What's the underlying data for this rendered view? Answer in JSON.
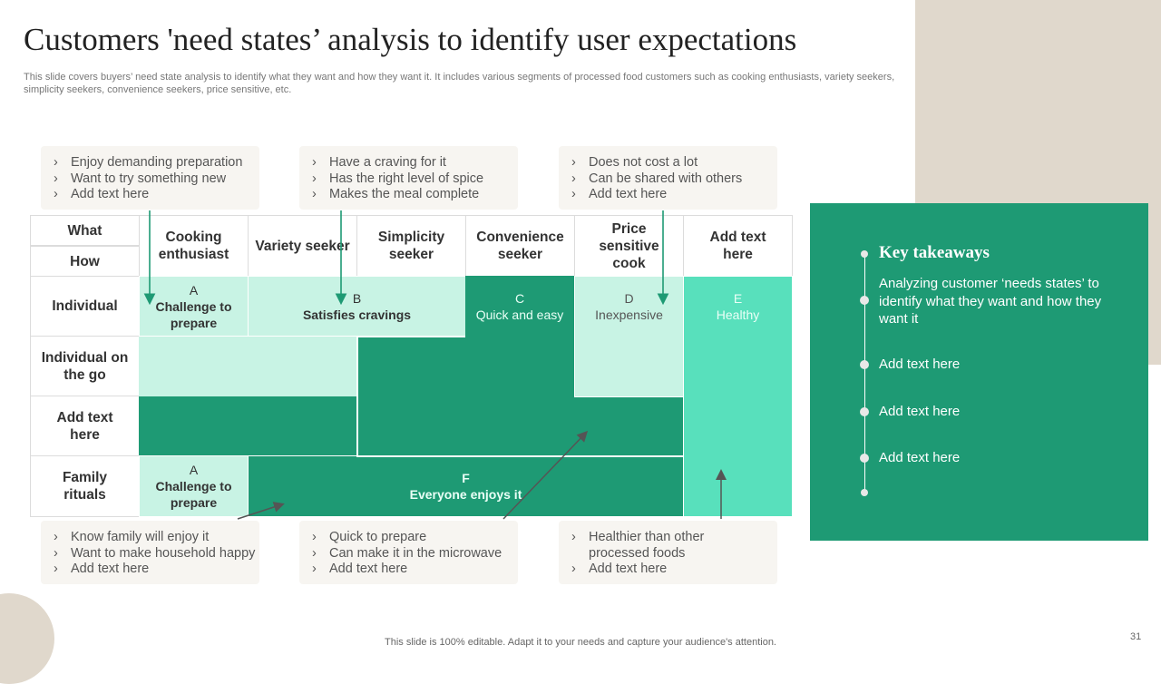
{
  "slide": {
    "title": "Customers 'need states’ analysis to identify user expectations",
    "subtitle": "This slide covers buyers’ need state analysis to identify what they want and how they want it. It includes various segments of processed food customers such as cooking enthusiasts, variety seekers, simplicity seekers, convenience seekers, price sensitive, etc.",
    "footer": "This slide is 100% editable. Adapt it to your needs and capture your audience's attention.",
    "page_number": "31",
    "colors": {
      "dark_green": "#1e9a74",
      "light_green": "#c8f3e4",
      "mint": "#58e0bc",
      "beige": "#e0d8cc",
      "note_bg": "#f7f5f1"
    }
  },
  "notes": {
    "top": [
      {
        "items": [
          "Enjoy demanding preparation",
          "Want to try something new",
          "Add text here"
        ]
      },
      {
        "items": [
          "Have a craving for it",
          "Has the right level of spice",
          "Makes the meal complete"
        ]
      },
      {
        "items": [
          "Does not cost a lot",
          "Can be shared with others",
          "Add text here"
        ]
      }
    ],
    "bottom": [
      {
        "items": [
          "Know family will enjoy it",
          "Want to make household happy",
          "Add text here"
        ]
      },
      {
        "items": [
          "Quick to prepare",
          "Can make it in the microwave",
          "Add text here"
        ]
      },
      {
        "items": [
          "Healthier than other",
          "processed foods",
          "Add text here"
        ]
      }
    ],
    "bullet_glyph": "›"
  },
  "grid": {
    "corner": {
      "what": "What",
      "how": "How"
    },
    "columns": [
      "Cooking enthusiast",
      "Variety seeker",
      "Simplicity seeker",
      "Convenience seeker",
      "Price sensitive cook",
      "Add text here"
    ],
    "rows": [
      "Individual",
      "Individual on the go",
      "Add text here",
      "Family rituals"
    ],
    "segments": {
      "a_top": {
        "letter": "A",
        "label": "Challenge to prepare"
      },
      "b": {
        "letter": "B",
        "label": "Satisfies cravings"
      },
      "c": {
        "letter": "C",
        "label": "Quick and easy"
      },
      "d": {
        "letter": "D",
        "label": "Inexpensive"
      },
      "e": {
        "letter": "E",
        "label": "Healthy"
      },
      "a_bottom": {
        "letter": "A",
        "label": "Challenge to prepare"
      },
      "f": {
        "letter": "F",
        "label": "Everyone enjoys it"
      }
    }
  },
  "takeaways": {
    "title": "Key takeaways",
    "main": "Analyzing customer ‘needs states’ to identify what they want and how they want it",
    "items": [
      "Add text here",
      "Add text here",
      "Add text here"
    ]
  }
}
